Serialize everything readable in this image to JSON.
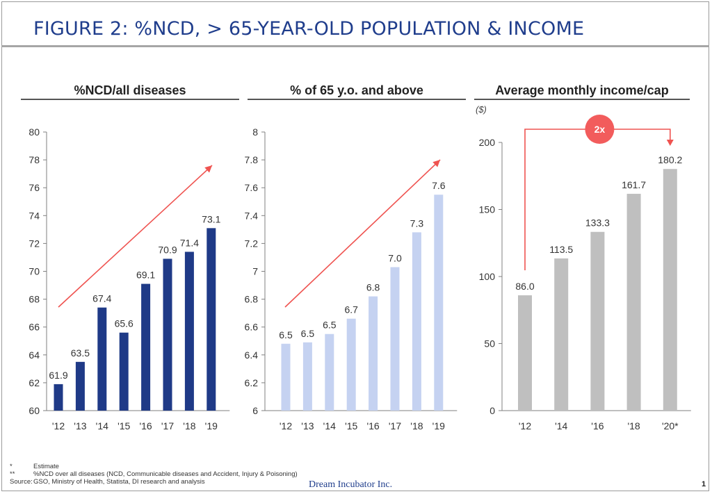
{
  "title": "FIGURE 2: %NCD, > 65-YEAR-OLD POPULATION & INCOME",
  "chart_data": [
    {
      "type": "bar",
      "title": "%NCD/all diseases",
      "categories": [
        "'12",
        "'13",
        "'14",
        "'15",
        "'16",
        "'17",
        "'18",
        "'19"
      ],
      "values": [
        61.9,
        63.5,
        67.4,
        65.6,
        69.1,
        70.9,
        71.4,
        73.1
      ],
      "value_labels": [
        "61.9",
        "63.5",
        "67.4",
        "65.6",
        "69.1",
        "70.9",
        "71.4",
        "73.1"
      ],
      "ylim": [
        60,
        80
      ],
      "yticks": [
        60,
        62,
        64,
        66,
        68,
        70,
        72,
        74,
        76,
        78,
        80
      ],
      "ytick_labels": [
        "60",
        "62",
        "64",
        "66",
        "68",
        "70",
        "72",
        "74",
        "76",
        "78",
        "80"
      ],
      "color": "#1f3a87",
      "annotation": "upward trend arrow"
    },
    {
      "type": "bar",
      "title": "% of 65 y.o. and above",
      "categories": [
        "'12",
        "'13",
        "'14",
        "'15",
        "'16",
        "'17",
        "'18",
        "'19"
      ],
      "values": [
        6.48,
        6.49,
        6.55,
        6.66,
        6.82,
        7.03,
        7.28,
        7.55
      ],
      "value_labels": [
        "6.5",
        "6.5",
        "6.5",
        "6.7",
        "6.8",
        "7.0",
        "7.3",
        "7.6"
      ],
      "ylim": [
        6,
        8
      ],
      "yticks": [
        6,
        6.2,
        6.4,
        6.6,
        6.8,
        7,
        7.2,
        7.4,
        7.6,
        7.8,
        8
      ],
      "ytick_labels": [
        "6",
        "6.2",
        "6.4",
        "6.6",
        "6.8",
        "7",
        "7.2",
        "7.4",
        "7.6",
        "7.8",
        "8"
      ],
      "color": "#c5d2f1",
      "annotation": "upward trend arrow"
    },
    {
      "type": "bar",
      "title": "Average monthly income/cap",
      "unit": "($)",
      "categories": [
        "'12",
        "'14",
        "'16",
        "'18",
        "'20*"
      ],
      "values": [
        86.0,
        113.5,
        133.3,
        161.7,
        180.2
      ],
      "value_labels": [
        "86.0",
        "113.5",
        "133.3",
        "161.7",
        "180.2"
      ],
      "ylim": [
        0,
        200
      ],
      "yticks": [
        0,
        50,
        100,
        150,
        200
      ],
      "ytick_labels": [
        "0",
        "50",
        "100",
        "150",
        "200"
      ],
      "color": "#bfbfbf",
      "annotation": "2x"
    }
  ],
  "footnotes": [
    {
      "mark": "*",
      "text": "Estimate"
    },
    {
      "mark": "**",
      "text": "%NCD over all diseases (NCD, Communicable diseases and Accident, Injury & Poisoning)"
    },
    {
      "mark": "Source:",
      "text": "GSO, Ministry of Health, Statista, DI research and analysis"
    }
  ],
  "brand": "Dream Incubator Inc.",
  "page_number": "1",
  "colors": {
    "title": "#1f3d8c",
    "arrow": "#ef5350",
    "badge": "#f25c5c"
  }
}
